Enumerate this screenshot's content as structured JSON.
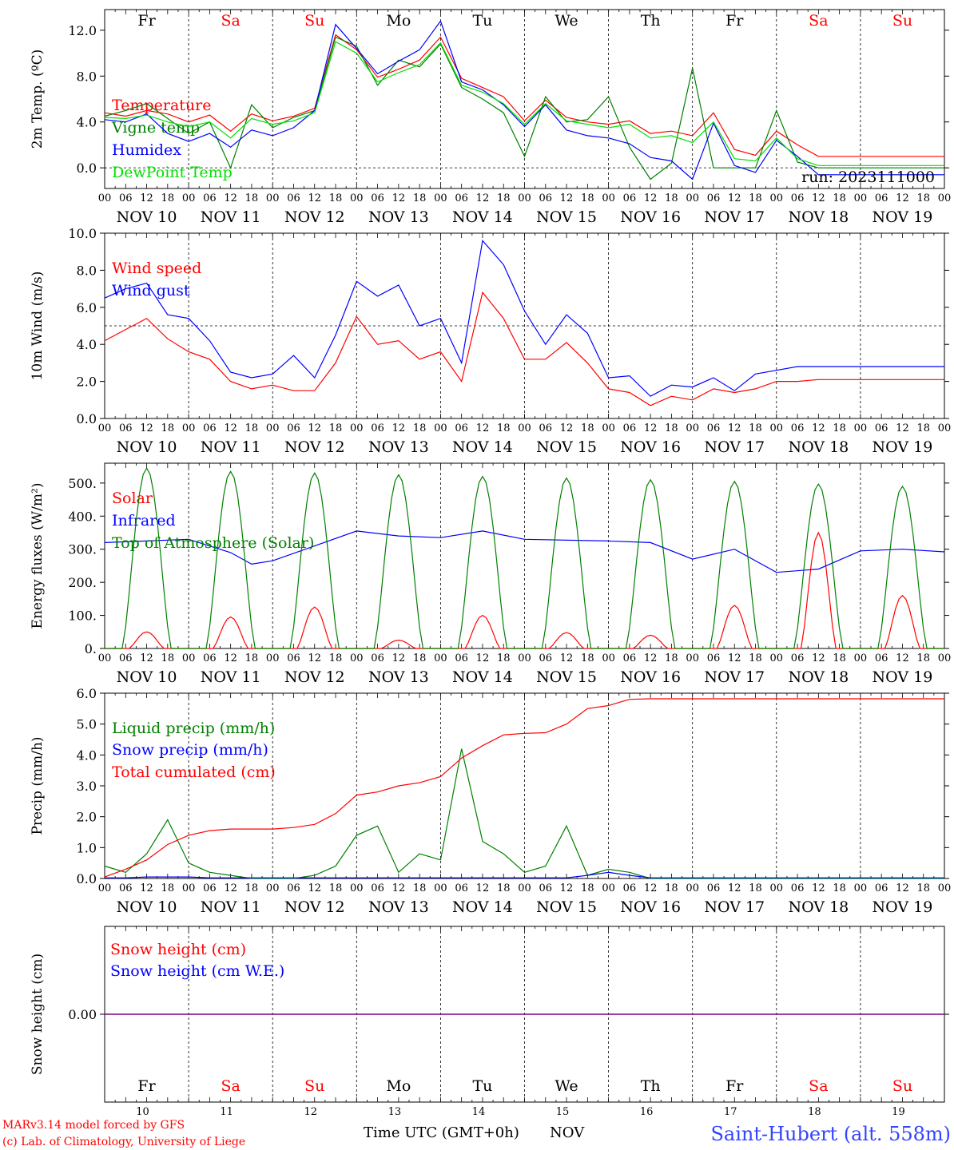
{
  "colors": {
    "red": "#ff0000",
    "green": "#008000",
    "blue": "#0000ff",
    "lime": "#00e000",
    "purple": "#800080",
    "black": "#000000",
    "station_blue": "#3344ff"
  },
  "days": [
    "Fr",
    "Sa",
    "Su",
    "Mo",
    "Tu",
    "We",
    "Th",
    "Fr",
    "Sa",
    "Su"
  ],
  "weekend_index": [
    1,
    2,
    8,
    9
  ],
  "dates": [
    "NOV 10",
    "NOV 11",
    "NOV 12",
    "NOV 13",
    "NOV 14",
    "NOV 15",
    "NOV 16",
    "NOV 17",
    "NOV 18",
    "NOV 19"
  ],
  "hour_ticks": [
    "00",
    "06",
    "12",
    "18"
  ],
  "hour_end": "00",
  "day_numbers": [
    "10",
    "11",
    "12",
    "13",
    "14",
    "15",
    "16",
    "17",
    "18",
    "19"
  ],
  "footer": {
    "credit_line1": "MARv3.14 model forced by GFS",
    "credit_line2": "(c) Lab. of Climatology, University of Liege",
    "time_label": "Time UTC (GMT+0h)",
    "month": "NOV",
    "station": "Saint-Hubert (alt. 558m)"
  },
  "run_label": "run: 2023111000",
  "chart_data": [
    {
      "id": "temp",
      "type": "line",
      "ylabel": "2m Temp. (ºC)",
      "ylim": [
        -1.8,
        13.8
      ],
      "yticks": [
        0,
        4,
        8,
        12
      ],
      "ytick_labels": [
        "0.0",
        "4.0",
        "8.0",
        "12.0"
      ],
      "ref_line": 0,
      "x": [
        0,
        6,
        12,
        18,
        24,
        30,
        36,
        42,
        48,
        54,
        60,
        66,
        72,
        78,
        84,
        90,
        96,
        102,
        108,
        114,
        120,
        126,
        132,
        138,
        144,
        150,
        156,
        162,
        168,
        174,
        180,
        186,
        192,
        198,
        204,
        210,
        216,
        222,
        228,
        234,
        240
      ],
      "series": [
        {
          "name": "Temperature",
          "color": "red",
          "values": [
            4.8,
            4.5,
            5.0,
            4.7,
            4.0,
            4.6,
            3.2,
            4.7,
            4.1,
            4.5,
            5.2,
            11.6,
            10.3,
            7.9,
            8.6,
            9.4,
            11.4,
            7.8,
            7.0,
            6.2,
            4.1,
            5.9,
            4.4,
            4.0,
            3.8,
            4.1,
            3.0,
            3.2,
            2.8,
            4.8,
            1.6,
            1.1,
            3.2,
            2.0,
            1.0,
            1.0,
            1.0,
            1.0,
            1.0,
            1.0,
            1.0
          ]
        },
        {
          "name": "Vigne temp",
          "color": "green",
          "values": [
            4.5,
            5.0,
            5.6,
            4.3,
            3.0,
            4.0,
            0.0,
            5.5,
            3.5,
            4.4,
            5.0,
            11.4,
            10.6,
            7.2,
            9.4,
            8.8,
            10.8,
            7.0,
            6.0,
            4.8,
            1.0,
            6.2,
            4.0,
            4.2,
            6.2,
            1.8,
            -1.0,
            0.4,
            8.7,
            0.0,
            0.0,
            0.0,
            5.0,
            0.5,
            0.0,
            0.0,
            0.0,
            0.0,
            0.0,
            0.0,
            0.0
          ]
        },
        {
          "name": "Humidex",
          "color": "blue",
          "values": [
            4.2,
            4.0,
            4.7,
            3.0,
            2.3,
            3.0,
            1.8,
            3.3,
            2.8,
            3.5,
            5.0,
            12.5,
            10.4,
            8.2,
            9.3,
            10.3,
            12.8,
            7.5,
            6.8,
            5.5,
            3.6,
            5.5,
            3.3,
            2.8,
            2.6,
            2.1,
            0.9,
            0.6,
            -1.0,
            3.9,
            0.2,
            -0.4,
            2.4,
            1.0,
            -0.6,
            -0.6,
            -0.6,
            -0.6,
            -0.6,
            -0.6,
            -0.6
          ]
        },
        {
          "name": "DewPoint Temp",
          "color": "lime",
          "values": [
            4.4,
            4.3,
            4.6,
            4.0,
            3.6,
            4.0,
            2.6,
            4.3,
            3.8,
            4.1,
            4.8,
            11.0,
            10.0,
            7.5,
            8.3,
            9.0,
            10.9,
            7.2,
            6.6,
            5.6,
            3.8,
            5.6,
            4.1,
            3.8,
            3.5,
            3.8,
            2.6,
            2.8,
            2.2,
            4.0,
            0.8,
            0.6,
            2.6,
            0.8,
            0.2,
            0.2,
            0.2,
            0.2,
            0.2,
            0.2,
            0.2
          ]
        }
      ]
    },
    {
      "id": "wind",
      "type": "line",
      "ylabel": "10m Wind (m/s)",
      "ylim": [
        0,
        10
      ],
      "yticks": [
        0,
        2,
        4,
        6,
        8,
        10
      ],
      "ytick_labels": [
        "0.0",
        "2.0",
        "4.0",
        "6.0",
        "8.0",
        "10.0"
      ],
      "ref_line": 5,
      "x": [
        0,
        6,
        12,
        18,
        24,
        30,
        36,
        42,
        48,
        54,
        60,
        66,
        72,
        78,
        84,
        90,
        96,
        102,
        108,
        114,
        120,
        126,
        132,
        138,
        144,
        150,
        156,
        162,
        168,
        174,
        180,
        186,
        192,
        198,
        204,
        210,
        216,
        222,
        228,
        234,
        240
      ],
      "series": [
        {
          "name": "Wind speed",
          "color": "red",
          "values": [
            4.2,
            4.8,
            5.4,
            4.3,
            3.6,
            3.2,
            2.0,
            1.6,
            1.8,
            1.5,
            1.5,
            3.0,
            5.5,
            4.0,
            4.2,
            3.2,
            3.6,
            2.0,
            6.8,
            5.4,
            3.2,
            3.2,
            4.1,
            3.0,
            1.6,
            1.4,
            0.7,
            1.2,
            1.0,
            1.6,
            1.4,
            1.6,
            2.0,
            2.0,
            2.1,
            2.1,
            2.1,
            2.1,
            2.1,
            2.1,
            2.1
          ]
        },
        {
          "name": "Wind gust",
          "color": "blue",
          "values": [
            6.5,
            7.0,
            7.3,
            5.6,
            5.4,
            4.2,
            2.5,
            2.2,
            2.4,
            3.4,
            2.2,
            4.5,
            7.4,
            6.6,
            7.2,
            5.0,
            5.4,
            3.0,
            9.6,
            8.3,
            5.8,
            4.0,
            5.6,
            4.6,
            2.2,
            2.3,
            1.2,
            1.8,
            1.7,
            2.2,
            1.5,
            2.4,
            2.6,
            2.8,
            2.8,
            2.8,
            2.8,
            2.8,
            2.8,
            2.8,
            2.8
          ]
        }
      ]
    },
    {
      "id": "flux",
      "type": "line",
      "ylabel": "Energy fluxes (W/m²)",
      "ylim": [
        0,
        560
      ],
      "yticks": [
        0,
        100,
        200,
        300,
        400,
        500
      ],
      "ytick_labels": [
        "0.",
        "100.",
        "200.",
        "300.",
        "400.",
        "500."
      ],
      "series": [
        {
          "name": "Solar",
          "color": "red",
          "day_peaks": [
            50,
            95,
            125,
            25,
            100,
            48,
            40,
            130,
            350,
            160
          ]
        },
        {
          "name": "Infrared",
          "color": "blue",
          "x": [
            0,
            12,
            24,
            36,
            42,
            48,
            60,
            72,
            84,
            96,
            108,
            120,
            144,
            156,
            168,
            180,
            192,
            204,
            216,
            228,
            240
          ],
          "values": [
            320,
            325,
            330,
            290,
            255,
            265,
            310,
            355,
            340,
            335,
            355,
            330,
            325,
            320,
            270,
            300,
            230,
            240,
            295,
            300,
            292
          ]
        },
        {
          "name": "Top of Atmosphere (Solar)",
          "color": "green",
          "day_peaks": [
            545,
            535,
            530,
            525,
            520,
            515,
            510,
            505,
            497,
            490
          ]
        }
      ]
    },
    {
      "id": "precip",
      "type": "line",
      "ylabel": "Precip (mm/h)",
      "ylim": [
        0,
        6
      ],
      "yticks": [
        0,
        1,
        2,
        3,
        4,
        5,
        6
      ],
      "ytick_labels": [
        "0.0",
        "1.0",
        "2.0",
        "3.0",
        "4.0",
        "5.0",
        "6.0"
      ],
      "x": [
        0,
        6,
        12,
        18,
        24,
        30,
        36,
        42,
        48,
        54,
        60,
        66,
        72,
        78,
        84,
        90,
        96,
        102,
        108,
        114,
        120,
        126,
        132,
        138,
        144,
        150,
        156,
        162,
        168,
        174,
        180,
        186,
        192,
        198,
        204,
        210,
        216,
        222,
        228,
        234,
        240
      ],
      "series": [
        {
          "name": "Liquid precip (mm/h)",
          "color": "green",
          "values": [
            0.4,
            0.2,
            0.8,
            1.9,
            0.5,
            0.2,
            0.1,
            0.0,
            0.0,
            0.0,
            0.1,
            0.4,
            1.4,
            1.7,
            0.2,
            0.8,
            0.6,
            4.2,
            1.2,
            0.8,
            0.2,
            0.4,
            1.7,
            0.1,
            0.3,
            0.2,
            0.0,
            0.0,
            0.0,
            0.0,
            0.0,
            0.0,
            0.0,
            0.0,
            0.0,
            0.0,
            0.0,
            0.0,
            0.0,
            0.0,
            0.0
          ]
        },
        {
          "name": "Snow precip (mm/h)",
          "color": "blue",
          "values": [
            0.02,
            0.02,
            0.05,
            0.05,
            0.05,
            0.02,
            0.02,
            0.02,
            0.02,
            0.02,
            0.02,
            0.02,
            0.02,
            0.02,
            0.02,
            0.02,
            0.02,
            0.02,
            0.02,
            0.02,
            0.02,
            0.02,
            0.02,
            0.1,
            0.2,
            0.1,
            0.02,
            0.02,
            0.02,
            0.02,
            0.02,
            0.02,
            0.02,
            0.02,
            0.02,
            0.02,
            0.02,
            0.02,
            0.02,
            0.02,
            0.02
          ]
        },
        {
          "name": "Total cumulated (cm)",
          "color": "red",
          "values": [
            0.05,
            0.3,
            0.6,
            1.1,
            1.4,
            1.55,
            1.6,
            1.6,
            1.6,
            1.65,
            1.75,
            2.1,
            2.7,
            2.8,
            3.0,
            3.1,
            3.3,
            3.9,
            4.3,
            4.65,
            4.7,
            4.72,
            5.0,
            5.5,
            5.6,
            5.8,
            5.82,
            5.82,
            5.82,
            5.82,
            5.82,
            5.82,
            5.82,
            5.82,
            5.82,
            5.82,
            5.82,
            5.82,
            5.82,
            5.82,
            5.82
          ]
        }
      ]
    },
    {
      "id": "snow",
      "type": "line",
      "ylabel": "Snow height (cm)",
      "ylim": [
        -1,
        1
      ],
      "yticks": [
        0
      ],
      "ytick_labels": [
        "0.00"
      ],
      "ref_line": 0,
      "ref_color": "purple",
      "series": [
        {
          "name": "Snow height (cm)",
          "color": "red",
          "values": [
            0
          ]
        },
        {
          "name": "Snow height (cm W.E.)",
          "color": "blue",
          "values": [
            0
          ]
        }
      ]
    }
  ]
}
